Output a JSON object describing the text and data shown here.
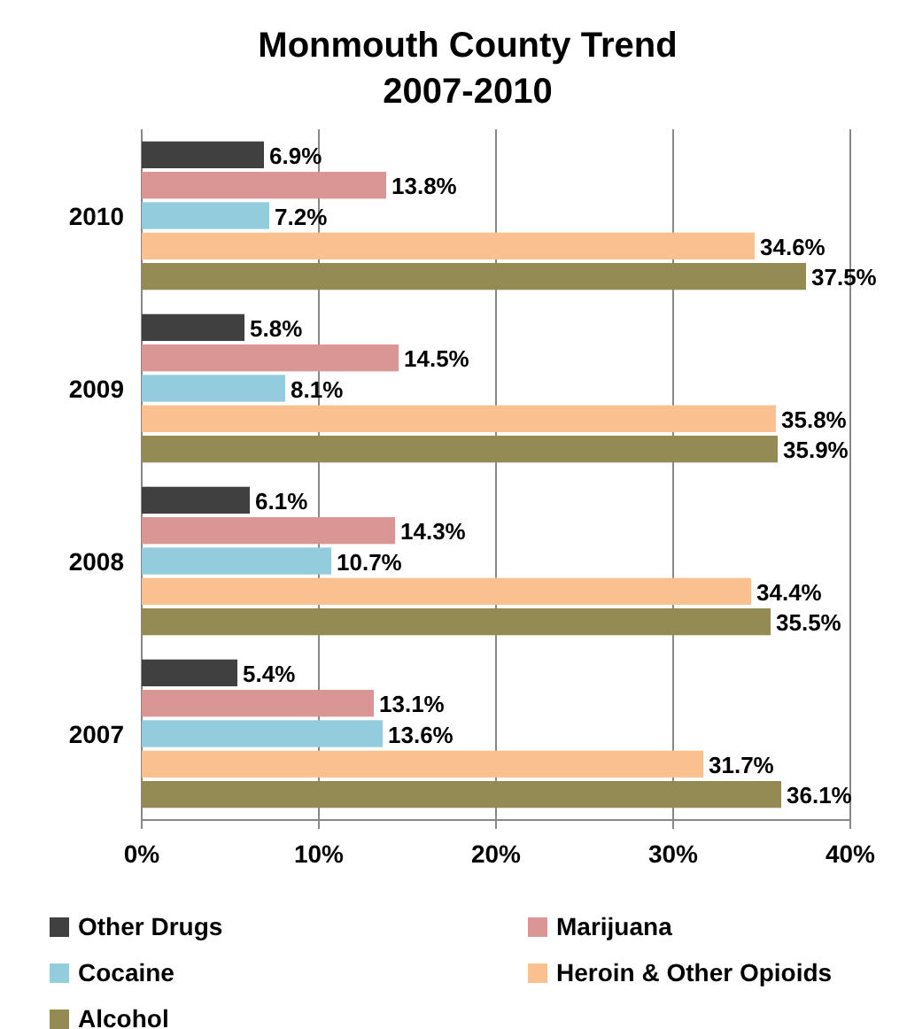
{
  "chart_data": {
    "type": "bar",
    "orientation": "horizontal",
    "title": "Monmouth County Trend\n2007-2010",
    "categories": [
      "2010",
      "2009",
      "2008",
      "2007"
    ],
    "series": [
      {
        "name": "Other Drugs",
        "color": "#404040",
        "values": [
          6.9,
          5.8,
          6.1,
          5.4
        ],
        "value_labels": [
          "6.9%",
          "5.8%",
          "6.1%",
          "5.4%"
        ]
      },
      {
        "name": "Marijuana",
        "color": "#d99694",
        "values": [
          13.8,
          14.5,
          14.3,
          13.1
        ],
        "value_labels": [
          "13.8%",
          "14.5%",
          "14.3%",
          "13.1%"
        ]
      },
      {
        "name": "Cocaine",
        "color": "#93cddd",
        "values": [
          7.2,
          8.1,
          10.7,
          13.6
        ],
        "value_labels": [
          "7.2%",
          "8.1%",
          "10.7%",
          "13.6%"
        ]
      },
      {
        "name": "Heroin & Other Opioids",
        "color": "#fac090",
        "values": [
          34.6,
          35.8,
          34.4,
          31.7
        ],
        "value_labels": [
          "34.6%",
          "35.8%",
          "34.4%",
          "31.7%"
        ]
      },
      {
        "name": "Alcohol",
        "color": "#948a54",
        "values": [
          37.5,
          35.9,
          35.5,
          36.1
        ],
        "value_labels": [
          "37.5%",
          "35.9%",
          "35.5%",
          "36.1%"
        ]
      }
    ],
    "xlim": [
      0,
      40
    ],
    "xticks": [
      {
        "value": 0,
        "label": "0%"
      },
      {
        "value": 10,
        "label": "10%"
      },
      {
        "value": 20,
        "label": "20%"
      },
      {
        "value": 30,
        "label": "30%"
      },
      {
        "value": 40,
        "label": "40%"
      }
    ],
    "grid": "x",
    "legend": "bottom"
  }
}
